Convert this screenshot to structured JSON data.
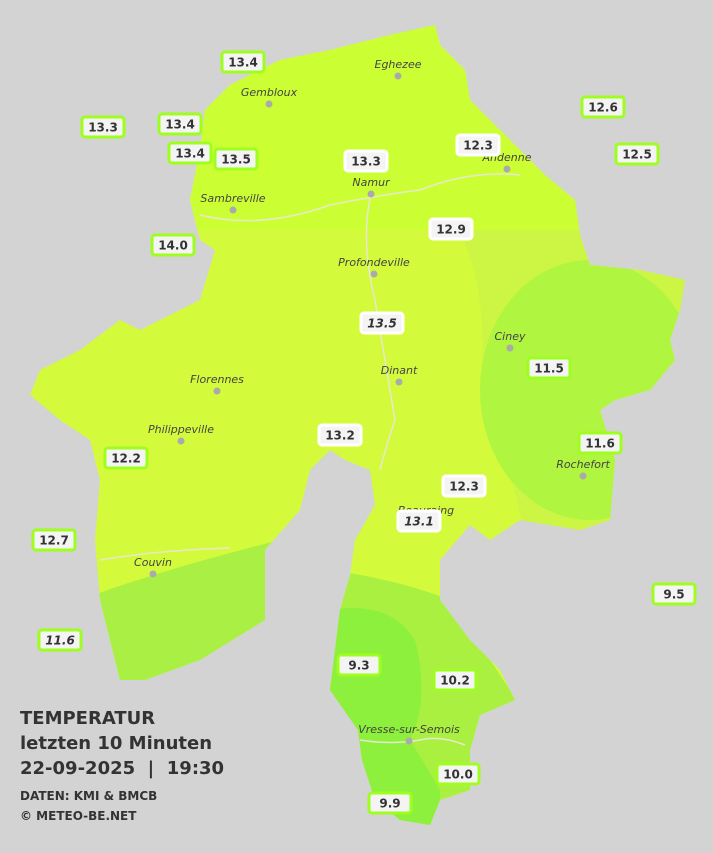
{
  "map": {
    "stations": [
      {
        "value": "13.4"
      },
      {
        "value": "13.3"
      },
      {
        "value": "13.4"
      },
      {
        "value": "13.4"
      },
      {
        "value": "13.5"
      },
      {
        "value": "13.3"
      },
      {
        "value": "12.3"
      },
      {
        "value": "12.6"
      },
      {
        "value": "12.5"
      },
      {
        "value": "14.0"
      },
      {
        "value": "12.9"
      },
      {
        "value": "13.5"
      },
      {
        "value": "11.5"
      },
      {
        "value": "13.2"
      },
      {
        "value": "11.6"
      },
      {
        "value": "12.2"
      },
      {
        "value": "12.3"
      },
      {
        "value": "13.1"
      },
      {
        "value": "12.7"
      },
      {
        "value": "9.5"
      },
      {
        "value": "11.6"
      },
      {
        "value": "9.3"
      },
      {
        "value": "10.2"
      },
      {
        "value": "10.0"
      },
      {
        "value": "9.9"
      }
    ],
    "cities": [
      "Eghezee",
      "Gembloux",
      "Andenne",
      "Namur",
      "Sambreville",
      "Profondeville",
      "Ciney",
      "Dinant",
      "Florennes",
      "Philippeville",
      "Rochefort",
      "Beauraing",
      "Couvin",
      "Vresse-sur-Semois"
    ]
  },
  "legend": {
    "title": "TEMPERATUR",
    "subtitle": "letzten 10 Minuten",
    "timestamp": "22-09-2025  |  19:30",
    "source": "DATEN: KMI & BMCB",
    "copyright": "© METEO-BE.NET"
  }
}
